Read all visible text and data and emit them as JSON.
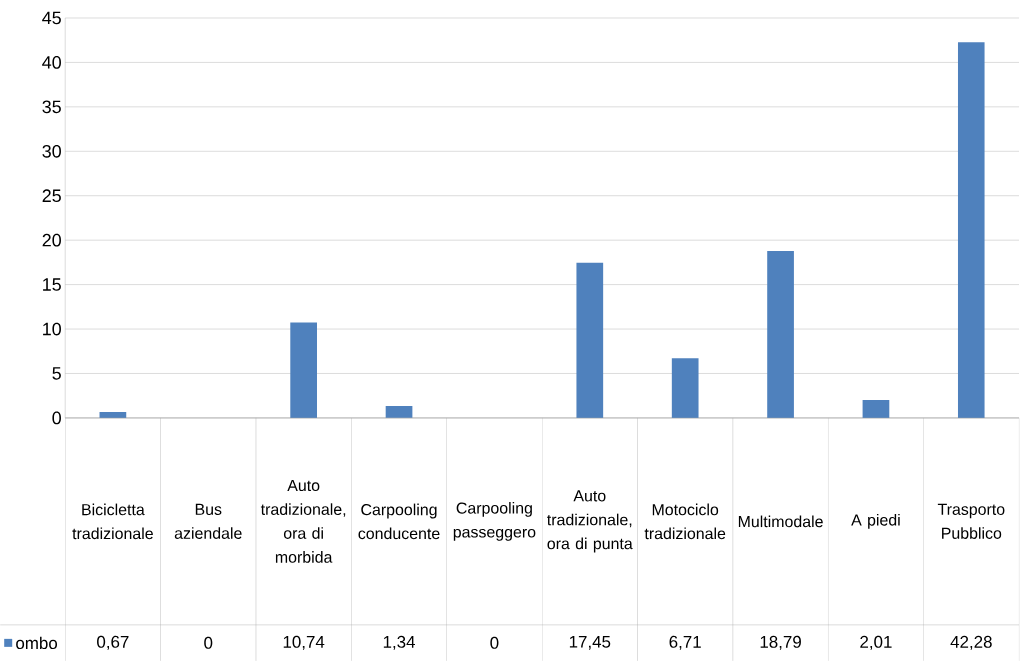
{
  "chart_data": {
    "type": "bar",
    "categories": [
      "Bicicletta tradizionale",
      "Bus aziendale",
      "Auto tradizionale, ora di morbida",
      "Carpooling conducente",
      "Carpooling passeggero",
      "Auto tradizionale, ora di punta",
      "Motociclo tradizionale",
      "Multimodale",
      "A piedi",
      "Trasporto Pubblico"
    ],
    "series": [
      {
        "name": "ombo",
        "color": "#4f81bd",
        "values": [
          0.67,
          0,
          10.74,
          1.34,
          0,
          17.45,
          6.71,
          18.79,
          2.01,
          42.28
        ],
        "value_labels": [
          "0,67",
          "0",
          "10,74",
          "1,34",
          "0",
          "17,45",
          "6,71",
          "18,79",
          "2,01",
          "42,28"
        ]
      }
    ],
    "ylim": [
      0,
      45
    ],
    "yticks": [
      0,
      5,
      10,
      15,
      20,
      25,
      30,
      35,
      40,
      45
    ],
    "grid": "y"
  }
}
